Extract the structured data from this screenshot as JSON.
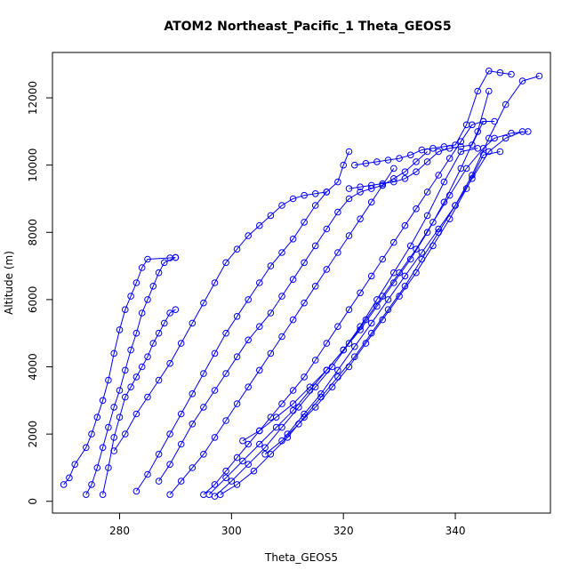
{
  "chart_data": {
    "type": "scatter",
    "title": "ATOM2 Northeast_Pacific_1 Theta_GEOS5",
    "xlabel": "Theta_GEOS5",
    "ylabel": "Altitude (m)",
    "xlim": [
      268,
      357
    ],
    "ylim": [
      -350,
      13350
    ],
    "xticks": [
      280,
      300,
      320,
      340
    ],
    "yticks": [
      0,
      2000,
      4000,
      6000,
      8000,
      10000,
      12000
    ],
    "grid": false,
    "series_color": "#0000ff",
    "series": [
      {
        "x": [
          270,
          271,
          272,
          274,
          275,
          276,
          277,
          278,
          279,
          280,
          281,
          282,
          283,
          284,
          285,
          289,
          290
        ],
        "y": [
          500,
          700,
          1100,
          1600,
          2000,
          2500,
          3000,
          3600,
          4400,
          5100,
          5700,
          6100,
          6500,
          6950,
          7200,
          7240,
          7250
        ]
      },
      {
        "x": [
          274,
          275,
          276,
          277,
          278,
          279,
          280,
          281,
          282,
          283,
          284,
          285,
          286,
          287,
          288,
          290
        ],
        "y": [
          200,
          500,
          1000,
          1600,
          2200,
          2800,
          3300,
          3900,
          4500,
          5000,
          5600,
          6000,
          6400,
          6800,
          7100,
          7250
        ]
      },
      {
        "x": [
          277,
          278,
          279,
          280,
          281,
          282,
          283,
          284,
          285,
          286,
          287,
          288,
          289,
          290
        ],
        "y": [
          200,
          1000,
          1900,
          2500,
          3100,
          3400,
          3700,
          4000,
          4300,
          4700,
          5000,
          5300,
          5600,
          5700
        ]
      },
      {
        "x": [
          279,
          281,
          283,
          285,
          287,
          289,
          291,
          293,
          295,
          297,
          299,
          301,
          303,
          305,
          307,
          309,
          311,
          313,
          315,
          317
        ],
        "y": [
          1500,
          2000,
          2600,
          3100,
          3600,
          4100,
          4700,
          5300,
          5900,
          6500,
          7100,
          7500,
          7900,
          8200,
          8500,
          8800,
          9000,
          9100,
          9150,
          9200
        ]
      },
      {
        "x": [
          283,
          285,
          287,
          289,
          291,
          293,
          295,
          297,
          299,
          301,
          303,
          305,
          307,
          309,
          311,
          313,
          315,
          317,
          319,
          320,
          321
        ],
        "y": [
          300,
          800,
          1400,
          2000,
          2600,
          3200,
          3800,
          4400,
          5000,
          5500,
          6000,
          6500,
          7000,
          7400,
          7800,
          8300,
          8800,
          9200,
          9500,
          10000,
          10400
        ]
      },
      {
        "x": [
          287,
          289,
          291,
          293,
          295,
          297,
          299,
          301,
          303,
          305,
          307,
          309,
          311,
          313,
          315,
          317,
          319,
          321,
          323,
          325,
          327,
          329,
          331,
          333,
          335
        ],
        "y": [
          600,
          1100,
          1700,
          2300,
          2800,
          3300,
          3800,
          4300,
          4800,
          5200,
          5600,
          6100,
          6600,
          7100,
          7600,
          8100,
          8600,
          9000,
          9200,
          9300,
          9400,
          9600,
          9800,
          10100,
          10400
        ]
      },
      {
        "x": [
          289,
          291,
          293,
          295,
          297,
          299,
          301,
          303,
          305,
          307,
          309,
          311,
          313,
          315,
          317,
          319,
          321,
          323,
          325,
          327,
          329
        ],
        "y": [
          200,
          600,
          1000,
          1400,
          1900,
          2400,
          2900,
          3400,
          3900,
          4400,
          4900,
          5400,
          5900,
          6400,
          6900,
          7400,
          7900,
          8400,
          8900,
          9400,
          9900
        ]
      },
      {
        "x": [
          295,
          297,
          299,
          301,
          303,
          305,
          307,
          309,
          311,
          313,
          315,
          317,
          319,
          321,
          323,
          325,
          327,
          329,
          331,
          333,
          335,
          337,
          339,
          341,
          343,
          345
        ],
        "y": [
          200,
          500,
          900,
          1300,
          1700,
          2100,
          2500,
          2900,
          3300,
          3700,
          4200,
          4700,
          5200,
          5700,
          6200,
          6700,
          7200,
          7700,
          8200,
          8700,
          9200,
          9700,
          10200,
          10700,
          11200,
          11300
        ]
      },
      {
        "x": [
          296,
          299,
          302,
          305,
          308,
          311,
          314,
          317,
          320,
          323,
          326,
          329,
          332,
          335,
          338,
          341,
          344,
          346
        ],
        "y": [
          200,
          700,
          1200,
          1700,
          2200,
          2700,
          3300,
          3900,
          4500,
          5100,
          5800,
          6500,
          7200,
          8000,
          8900,
          9900,
          11000,
          12200
        ]
      },
      {
        "x": [
          297,
          300,
          303,
          306,
          309,
          312,
          315,
          318,
          321,
          324,
          327,
          330,
          333,
          336,
          339,
          342,
          345,
          347,
          350,
          353
        ],
        "y": [
          150,
          600,
          1100,
          1600,
          2200,
          2800,
          3400,
          4000,
          4700,
          5400,
          6100,
          6800,
          7500,
          8300,
          9100,
          9900,
          10500,
          10800,
          10950,
          11000
        ]
      },
      {
        "x": [
          298,
          301,
          304,
          307,
          310,
          313,
          316,
          319,
          322,
          325,
          328,
          331,
          334,
          337,
          340,
          343,
          346,
          349,
          352,
          355
        ],
        "y": [
          200,
          500,
          900,
          1400,
          1900,
          2500,
          3100,
          3700,
          4300,
          5000,
          5700,
          6400,
          7200,
          8000,
          8800,
          9700,
          10800,
          11800,
          12500,
          12650
        ]
      },
      {
        "x": [
          302,
          305,
          308,
          311,
          314,
          317,
          320,
          323,
          326,
          329,
          332,
          335,
          338,
          341,
          344
        ],
        "y": [
          1800,
          2100,
          2500,
          2900,
          3400,
          3900,
          4500,
          5200,
          6000,
          6800,
          7600,
          8500,
          9500,
          10400,
          10500
        ]
      },
      {
        "x": [
          306,
          309,
          312,
          315,
          318,
          321,
          324,
          327,
          330,
          333,
          336,
          339,
          342,
          345,
          348
        ],
        "y": [
          1400,
          1800,
          2300,
          2800,
          3400,
          4000,
          4700,
          5400,
          6100,
          6800,
          7600,
          8400,
          9300,
          10300,
          10400
        ]
      },
      {
        "x": [
          310,
          313,
          316,
          319,
          322,
          325,
          328,
          331,
          334,
          337,
          340,
          343,
          346,
          349,
          352
        ],
        "y": [
          2000,
          2600,
          3200,
          3900,
          4600,
          5300,
          6000,
          6700,
          7400,
          8100,
          8800,
          9600,
          10400,
          10800,
          11000
        ]
      },
      {
        "x": [
          321,
          323,
          325,
          327,
          329,
          331,
          333,
          335,
          337,
          339,
          341,
          343,
          345,
          347
        ],
        "y": [
          9300,
          9350,
          9400,
          9450,
          9500,
          9600,
          9800,
          10100,
          10400,
          10500,
          10550,
          10600,
          11300,
          11300
        ]
      },
      {
        "x": [
          322,
          324,
          326,
          328,
          330,
          332,
          334,
          336,
          338,
          340,
          342,
          344,
          346,
          348,
          350
        ],
        "y": [
          10000,
          10050,
          10100,
          10150,
          10200,
          10300,
          10450,
          10500,
          10550,
          10600,
          11200,
          12200,
          12800,
          12750,
          12700
        ]
      }
    ]
  }
}
